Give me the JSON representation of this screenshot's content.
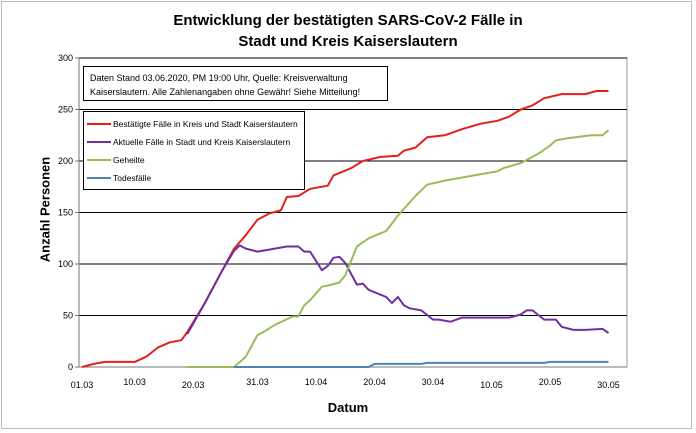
{
  "chart_data": {
    "type": "line",
    "title_lines": [
      "Entwicklung der bestätigten SARS-CoV-2 Fälle in",
      "Stadt und Kreis Kaiserslautern"
    ],
    "xlabel": "Datum",
    "ylabel": "Anzahl Personen",
    "note_lines": [
      "Daten Stand 03.06.2020, PM 19:00 Uhr, Quelle: Kreisverwaltung",
      "Kaiserslautern. Alle Zahlenangaben ohne Gewähr! Siehe Mitteilung!"
    ],
    "x_ticks": [
      "01.03",
      "10.03",
      "20.03",
      "31.03",
      "10.04",
      "20.04",
      "30.04",
      "10.05",
      "20.05",
      "30.05"
    ],
    "y_ticks": [
      0,
      50,
      100,
      150,
      200,
      250,
      300
    ],
    "ylim": [
      0,
      300
    ],
    "xlim": [
      "01.03",
      "03.06"
    ],
    "grid": "horizontal",
    "legend_placement": "top-left",
    "series": [
      {
        "name": "Bestätigte Fälle in Kreis und Stadt Kaiserslautern",
        "color": "#e3201b",
        "points": [
          [
            "01.03",
            0
          ],
          [
            "03.03",
            3
          ],
          [
            "05.03",
            5
          ],
          [
            "10.03",
            5
          ],
          [
            "12.03",
            10
          ],
          [
            "14.03",
            19
          ],
          [
            "16.03",
            24
          ],
          [
            "18.03",
            26
          ],
          [
            "19.03",
            34
          ],
          [
            "22.03",
            62
          ],
          [
            "25.03",
            94
          ],
          [
            "27.03",
            115
          ],
          [
            "29.03",
            128
          ],
          [
            "31.03",
            143
          ],
          [
            "02.04",
            149
          ],
          [
            "04.04",
            152
          ],
          [
            "05.04",
            165
          ],
          [
            "07.04",
            166
          ],
          [
            "09.04",
            173
          ],
          [
            "12.04",
            176
          ],
          [
            "13.04",
            186
          ],
          [
            "16.04",
            193
          ],
          [
            "18.04",
            200
          ],
          [
            "21.04",
            204
          ],
          [
            "24.04",
            205
          ],
          [
            "25.04",
            210
          ],
          [
            "27.04",
            213
          ],
          [
            "29.04",
            223
          ],
          [
            "02.05",
            225
          ],
          [
            "05.05",
            231
          ],
          [
            "08.05",
            236
          ],
          [
            "11.05",
            239
          ],
          [
            "13.05",
            243
          ],
          [
            "15.05",
            250
          ],
          [
            "17.05",
            254
          ],
          [
            "19.05",
            261
          ],
          [
            "22.05",
            265
          ],
          [
            "26.05",
            265
          ],
          [
            "28.05",
            268
          ],
          [
            "30.05",
            268
          ]
        ]
      },
      {
        "name": "Aktuelle Fälle in Stadt und Kreis Kaiserslautern",
        "color": "#7030a0",
        "points": [
          [
            "19.03",
            32
          ],
          [
            "22.03",
            62
          ],
          [
            "25.03",
            94
          ],
          [
            "27.03",
            113
          ],
          [
            "28.03",
            118
          ],
          [
            "29.03",
            115
          ],
          [
            "31.03",
            112
          ],
          [
            "02.04",
            114
          ],
          [
            "05.04",
            117
          ],
          [
            "07.04",
            117
          ],
          [
            "08.04",
            112
          ],
          [
            "09.04",
            112
          ],
          [
            "11.04",
            94
          ],
          [
            "12.04",
            98
          ],
          [
            "13.04",
            106
          ],
          [
            "14.04",
            107
          ],
          [
            "15.04",
            101
          ],
          [
            "17.04",
            80
          ],
          [
            "18.04",
            81
          ],
          [
            "19.04",
            75
          ],
          [
            "22.04",
            68
          ],
          [
            "23.04",
            62
          ],
          [
            "24.04",
            68
          ],
          [
            "25.04",
            60
          ],
          [
            "26.04",
            57
          ],
          [
            "28.04",
            55
          ],
          [
            "30.04",
            46
          ],
          [
            "01.05",
            46
          ],
          [
            "03.05",
            44
          ],
          [
            "05.05",
            48
          ],
          [
            "08.05",
            48
          ],
          [
            "11.05",
            48
          ],
          [
            "13.05",
            48
          ],
          [
            "15.05",
            51
          ],
          [
            "16.05",
            55
          ],
          [
            "17.05",
            55
          ],
          [
            "19.05",
            46
          ],
          [
            "21.05",
            46
          ],
          [
            "22.05",
            39
          ],
          [
            "24.05",
            36
          ],
          [
            "26.05",
            36
          ],
          [
            "29.05",
            37
          ],
          [
            "30.05",
            33
          ]
        ]
      },
      {
        "name": "Geheilte",
        "color": "#9bbb59",
        "points": [
          [
            "19.03",
            0
          ],
          [
            "27.03",
            0
          ],
          [
            "29.03",
            10
          ],
          [
            "31.03",
            31
          ],
          [
            "01.04",
            34
          ],
          [
            "03.04",
            41
          ],
          [
            "06.04",
            49
          ],
          [
            "07.04",
            49
          ],
          [
            "08.04",
            60
          ],
          [
            "09.04",
            65
          ],
          [
            "11.04",
            78
          ],
          [
            "12.04",
            79
          ],
          [
            "14.04",
            82
          ],
          [
            "15.04",
            89
          ],
          [
            "17.04",
            117
          ],
          [
            "19.04",
            125
          ],
          [
            "22.04",
            132
          ],
          [
            "24.04",
            147
          ],
          [
            "27.04",
            166
          ],
          [
            "29.04",
            177
          ],
          [
            "02.05",
            181
          ],
          [
            "05.05",
            184
          ],
          [
            "08.05",
            187
          ],
          [
            "11.05",
            190
          ],
          [
            "12.05",
            193
          ],
          [
            "15.05",
            198
          ],
          [
            "18.05",
            207
          ],
          [
            "20.05",
            215
          ],
          [
            "21.05",
            220
          ],
          [
            "23.05",
            222
          ],
          [
            "27.05",
            225
          ],
          [
            "29.05",
            225
          ],
          [
            "30.05",
            230
          ]
        ]
      },
      {
        "name": "Todesfälle",
        "color": "#4f81bd",
        "points": [
          [
            "27.03",
            0
          ],
          [
            "19.04",
            0
          ],
          [
            "20.04",
            3
          ],
          [
            "28.04",
            3
          ],
          [
            "29.04",
            4
          ],
          [
            "19.05",
            4
          ],
          [
            "20.05",
            5
          ],
          [
            "30.05",
            5
          ]
        ]
      }
    ]
  }
}
